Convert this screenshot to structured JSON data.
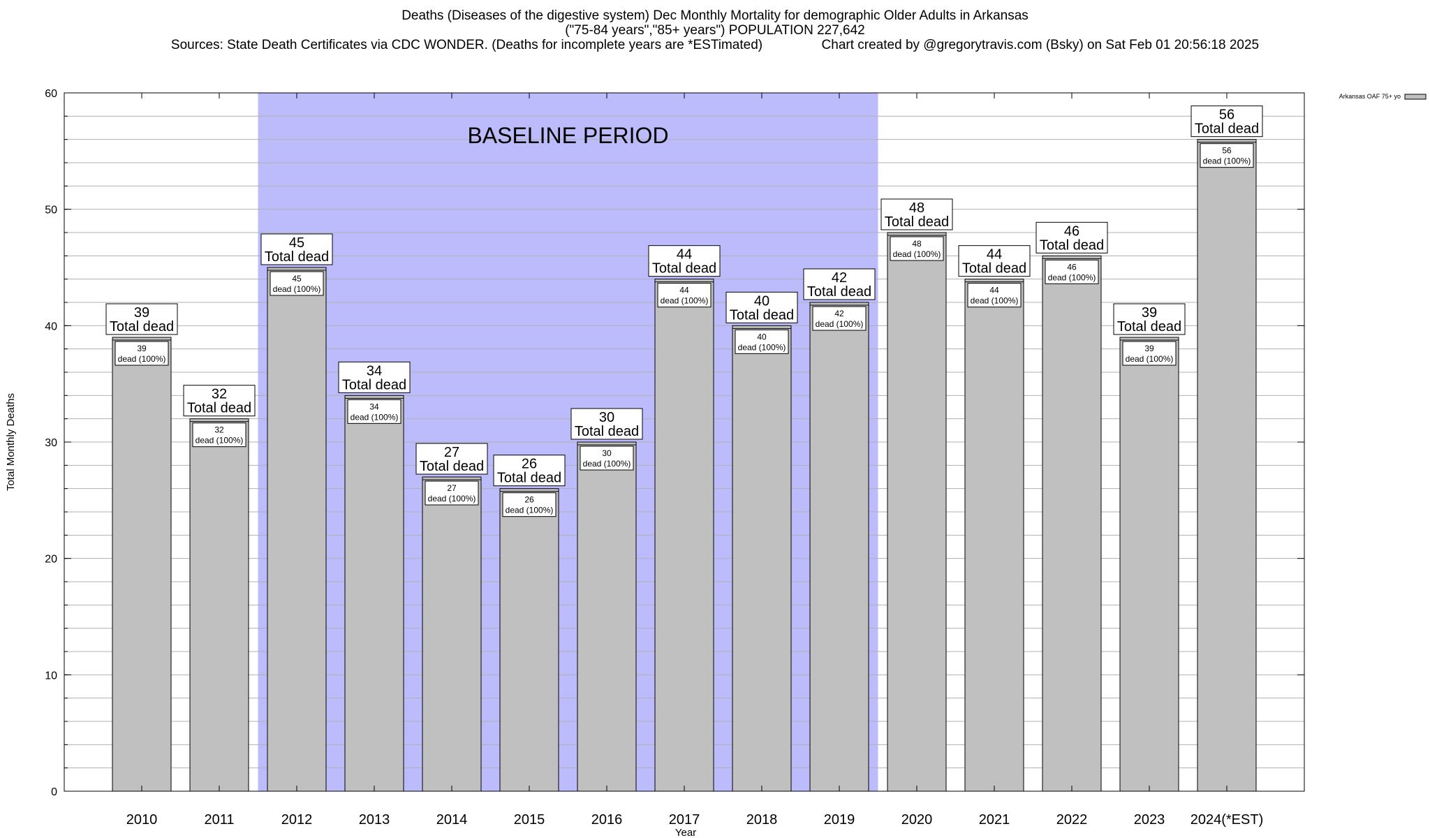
{
  "title": {
    "line1": "Deaths (Diseases of the digestive system) Dec Monthly Mortality for demographic Older Adults in Arkansas",
    "line2": "(\"75-84 years\",\"85+ years\") POPULATION 227,642",
    "line3": "Sources: State Death Certificates via CDC WONDER. (Deaths for incomplete years are *ESTimated)                Chart created by @gregorytravis.com (Bsky) on Sat Feb 01 20:56:18 2025"
  },
  "colors": {
    "bar_fill": "#c0c0c0",
    "baseline_band": "#bcbcfc",
    "grid": "#b0b0b0",
    "axis": "#000000"
  },
  "chart_data": {
    "type": "bar",
    "categories": [
      "2010",
      "2011",
      "2012",
      "2013",
      "2014",
      "2015",
      "2016",
      "2017",
      "2018",
      "2019",
      "2020",
      "2021",
      "2022",
      "2023",
      "2024(*EST)"
    ],
    "series": [
      {
        "name": "Arkansas OAF 75+ yo",
        "values": [
          39,
          32,
          45,
          34,
          27,
          26,
          30,
          44,
          40,
          42,
          48,
          44,
          46,
          39,
          56
        ]
      }
    ],
    "total_label_suffix": "Total dead",
    "inner_label_suffix": "dead (100%)",
    "xlabel": "Year",
    "ylabel": "Total Monthly Deaths",
    "ylim": [
      0,
      60
    ],
    "yticks": [
      0,
      10,
      20,
      30,
      40,
      50,
      60
    ],
    "minor_grid_step": 2,
    "grid": true,
    "legend_position": "top-right",
    "annotations": [
      {
        "type": "shaded_span",
        "from": "2012",
        "to": "2019",
        "label": "BASELINE PERIOD"
      }
    ]
  }
}
